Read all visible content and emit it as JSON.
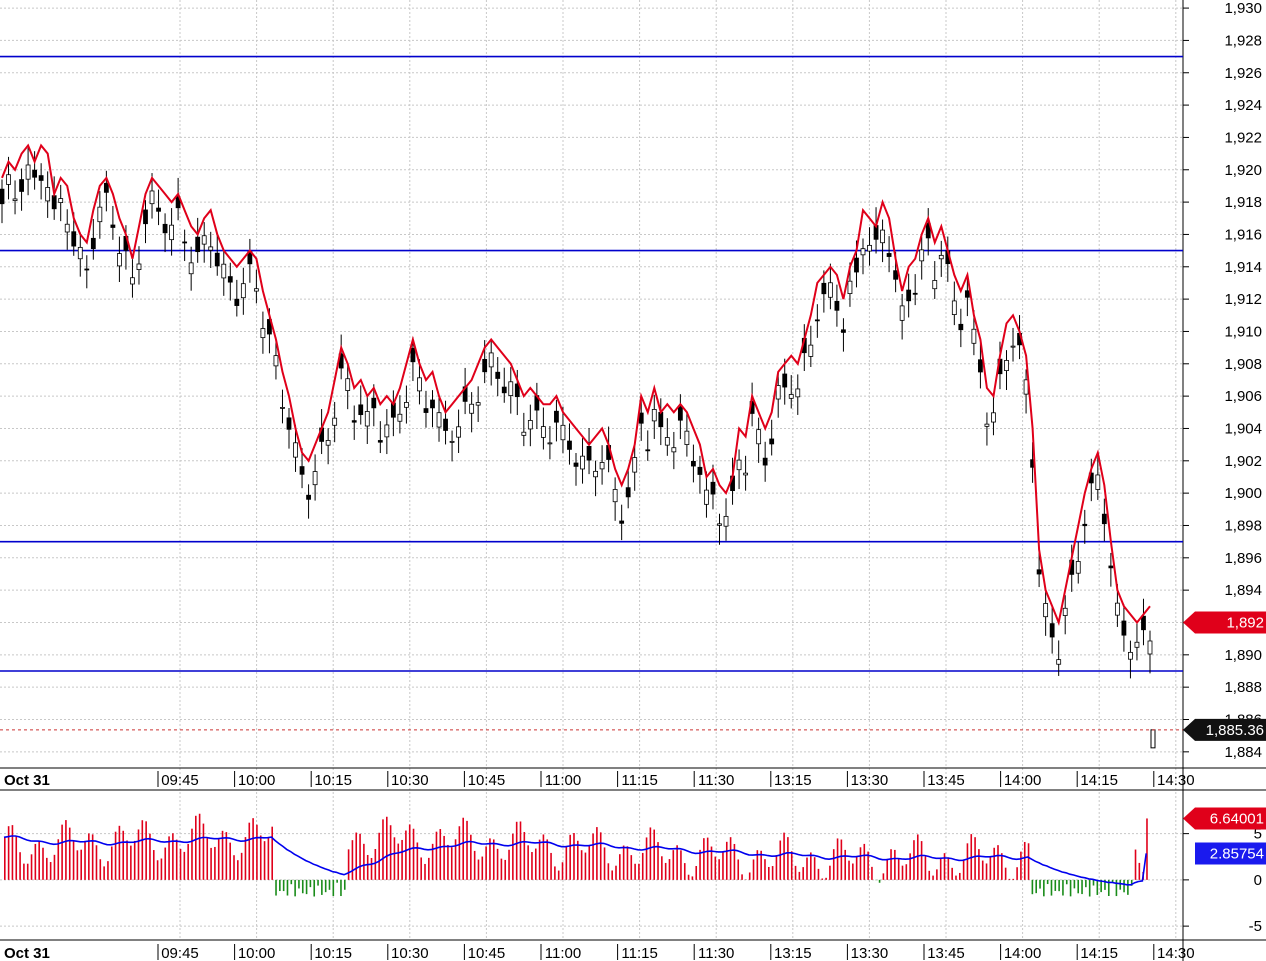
{
  "chart_data": [
    {
      "type": "candlestick",
      "date_label": "Oct 31",
      "time_ticks": [
        "09:45",
        "10:00",
        "10:15",
        "10:30",
        "10:45",
        "11:00",
        "11:15",
        "11:30",
        "13:15",
        "13:30",
        "13:45",
        "14:00",
        "14:15",
        "14:30"
      ],
      "y_ticks": [
        "1,930",
        "1,928",
        "1,926",
        "1,924",
        "1,922",
        "1,920",
        "1,918",
        "1,916",
        "1,914",
        "1,912",
        "1,910",
        "1,908",
        "1,906",
        "1,904",
        "1,902",
        "1,900",
        "1,898",
        "1,896",
        "1,894",
        "1,892",
        "1,890",
        "1,888",
        "1,886",
        "1,884"
      ],
      "ylim": [
        1883,
        1930.5
      ],
      "grid": true,
      "horizontal_lines": [
        1927,
        1915,
        1897,
        1889
      ],
      "last_price_label": "1,892",
      "reference_price_label": "1,885.36",
      "reference_price": 1885.36,
      "red_line": [
        1919.5,
        1920.5,
        1920.0,
        1921.0,
        1921.5,
        1920.5,
        1921.5,
        1921.0,
        1918.5,
        1919.5,
        1919.0,
        1917.0,
        1916.0,
        1915.5,
        1917.5,
        1919.0,
        1919.5,
        1918.5,
        1917.0,
        1916.0,
        1914.5,
        1916.5,
        1918.5,
        1919.5,
        1919.0,
        1918.5,
        1918.0,
        1918.5,
        1917.5,
        1916.5,
        1916.0,
        1917.0,
        1917.5,
        1916.0,
        1915.0,
        1914.5,
        1914.0,
        1914.5,
        1915.0,
        1914.5,
        1912.5,
        1911.0,
        1909.5,
        1907.5,
        1906.0,
        1904.0,
        1902.5,
        1902.0,
        1903.0,
        1904.0,
        1905.0,
        1907.0,
        1909.0,
        1908.0,
        1906.5,
        1907.0,
        1906.0,
        1906.5,
        1905.5,
        1906.0,
        1905.5,
        1906.5,
        1908.0,
        1909.5,
        1908.0,
        1907.0,
        1907.5,
        1906.0,
        1905.0,
        1905.5,
        1906.0,
        1906.5,
        1907.0,
        1908.0,
        1909.0,
        1909.5,
        1909.0,
        1908.5,
        1908.0,
        1907.0,
        1906.0,
        1906.5,
        1906.0,
        1905.5,
        1905.5,
        1906.0,
        1905.0,
        1904.5,
        1904.0,
        1903.5,
        1903.0,
        1903.5,
        1904.0,
        1903.0,
        1901.5,
        1900.5,
        1901.5,
        1903.0,
        1906.0,
        1905.0,
        1906.5,
        1905.0,
        1905.5,
        1905.0,
        1905.5,
        1905.0,
        1904.0,
        1903.0,
        1901.0,
        1901.5,
        1900.5,
        1900.0,
        1901.0,
        1904.0,
        1903.5,
        1906.0,
        1905.0,
        1904.0,
        1905.0,
        1907.5,
        1908.0,
        1908.5,
        1908.0,
        1909.5,
        1911.0,
        1913.0,
        1913.5,
        1914.0,
        1913.5,
        1912.0,
        1914.0,
        1915.0,
        1917.5,
        1917.0,
        1916.5,
        1918.0,
        1917.0,
        1914.5,
        1912.5,
        1914.0,
        1914.5,
        1916.0,
        1917.0,
        1915.5,
        1916.5,
        1915.0,
        1913.5,
        1912.5,
        1913.5,
        1911.0,
        1909.5,
        1906.5,
        1906.0,
        1908.5,
        1910.5,
        1911.0,
        1910.0,
        1908.5,
        1904.0,
        1896.5,
        1894.0,
        1893.0,
        1892.0,
        1894.0,
        1896.0,
        1898.0,
        1900.0,
        1901.5,
        1902.5,
        1900.5,
        1897.0,
        1894.0,
        1893.0,
        1892.5,
        1892.0,
        1892.5,
        1893.0
      ]
    },
    {
      "type": "bar",
      "date_label": "Oct 31",
      "time_ticks": [
        "09:45",
        "10:00",
        "10:15",
        "10:30",
        "10:45",
        "11:00",
        "11:15",
        "11:30",
        "13:15",
        "13:30",
        "13:45",
        "14:00",
        "14:15",
        "14:30"
      ],
      "y_ticks": [
        "5",
        "0",
        "-5"
      ],
      "ylim": [
        -6.5,
        9.5
      ],
      "value_label_1": "6.64001",
      "value_label_2": "2.85754",
      "last_value": 6.64001,
      "ma_last": 2.85754,
      "pos_color": "#e0001a",
      "neg_color": "#1a8c1a",
      "ma_color": "#0000ee"
    }
  ],
  "colors": {
    "level_line": "#0000cc",
    "price_line": "#e0001a",
    "grid": "#c8c8c8",
    "ref_line": "#cc3333"
  }
}
